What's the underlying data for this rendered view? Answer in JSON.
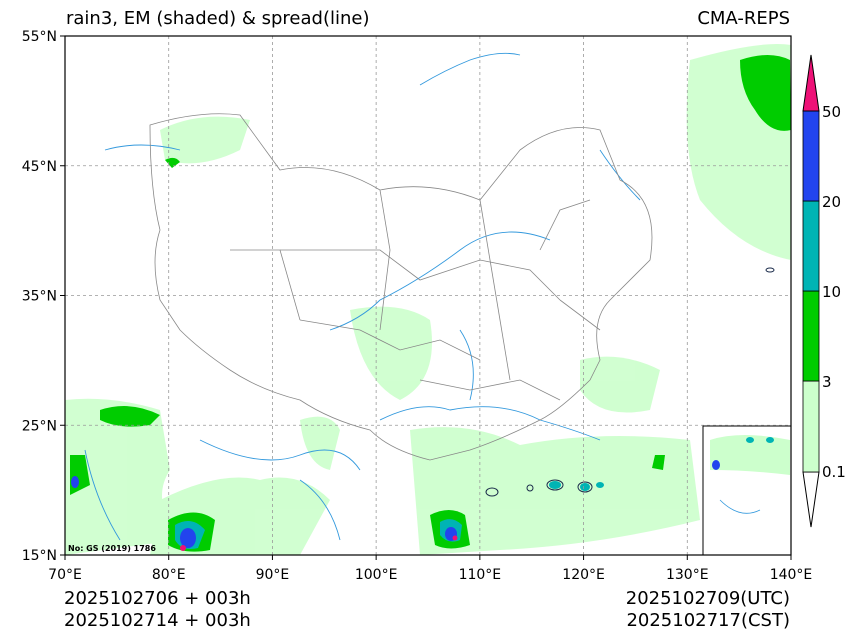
{
  "title_left": "rain3, EM (shaded) & spread(line)",
  "title_right": "CMA-REPS",
  "footer": {
    "init_utc": "2025102706  +  003h",
    "init_cst": "2025102714  +  003h",
    "valid_utc": "2025102709(UTC)",
    "valid_cst": "2025102717(CST)"
  },
  "map": {
    "lon_range": [
      70,
      140
    ],
    "lat_range": [
      15,
      55
    ],
    "lon_ticks": [
      "70°E",
      "80°E",
      "90°E",
      "100°E",
      "110°E",
      "120°E",
      "130°E",
      "140°E"
    ],
    "lat_ticks": [
      "55°N",
      "45°N",
      "35°N",
      "25°N",
      "15°N"
    ],
    "grid": "dashed",
    "credit": "No: GS (2019) 1786",
    "inset": "South China Sea"
  },
  "colorbar": {
    "levels": [
      "0.1",
      "3",
      "10",
      "20",
      "50"
    ],
    "colors": [
      "#ccffcc",
      "#00cc00",
      "#00b4b4",
      "#2244ee",
      "#ee1177"
    ]
  },
  "colors": {
    "light_rain": "#ccffcc",
    "medium_rain": "#00cc00",
    "heavy": "#00b4b4",
    "very_heavy": "#2244ee",
    "extreme": "#ee1177",
    "rivers": "#3399dd",
    "borders": "#888888"
  }
}
